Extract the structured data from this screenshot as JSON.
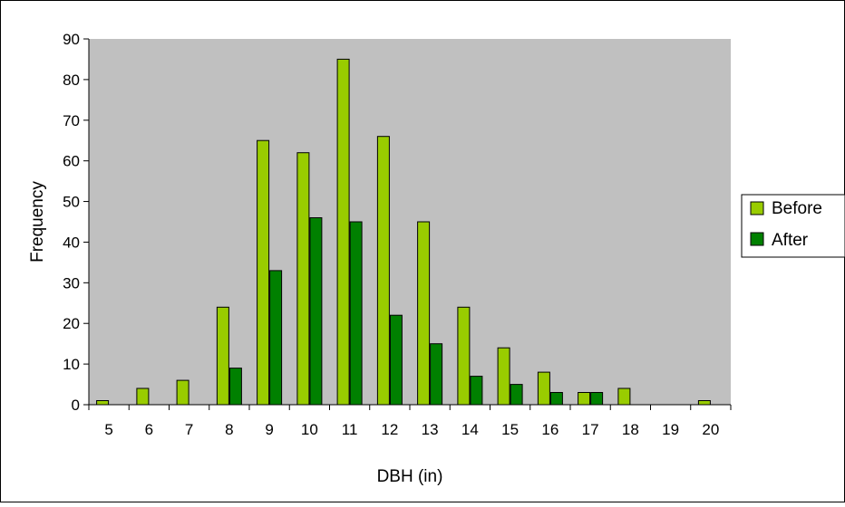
{
  "chart_data": {
    "type": "bar",
    "title": "",
    "xlabel": "DBH (in)",
    "ylabel": "Frequency",
    "ylim": [
      0,
      90
    ],
    "yticks": [
      0,
      10,
      20,
      30,
      40,
      50,
      60,
      70,
      80,
      90
    ],
    "categories": [
      "5",
      "6",
      "7",
      "8",
      "9",
      "10",
      "11",
      "12",
      "13",
      "14",
      "15",
      "16",
      "17",
      "18",
      "19",
      "20"
    ],
    "series": [
      {
        "name": "Before",
        "color": "#99cc00",
        "values": [
          1,
          4,
          6,
          24,
          65,
          62,
          85,
          66,
          45,
          24,
          14,
          8,
          3,
          4,
          0,
          1
        ]
      },
      {
        "name": "After",
        "color": "#008000",
        "values": [
          0,
          0,
          0,
          9,
          33,
          46,
          45,
          22,
          15,
          7,
          5,
          3,
          3,
          0,
          0,
          0
        ]
      }
    ],
    "plot_background": "#c0c0c0",
    "grid": false,
    "legend_position": "right"
  }
}
